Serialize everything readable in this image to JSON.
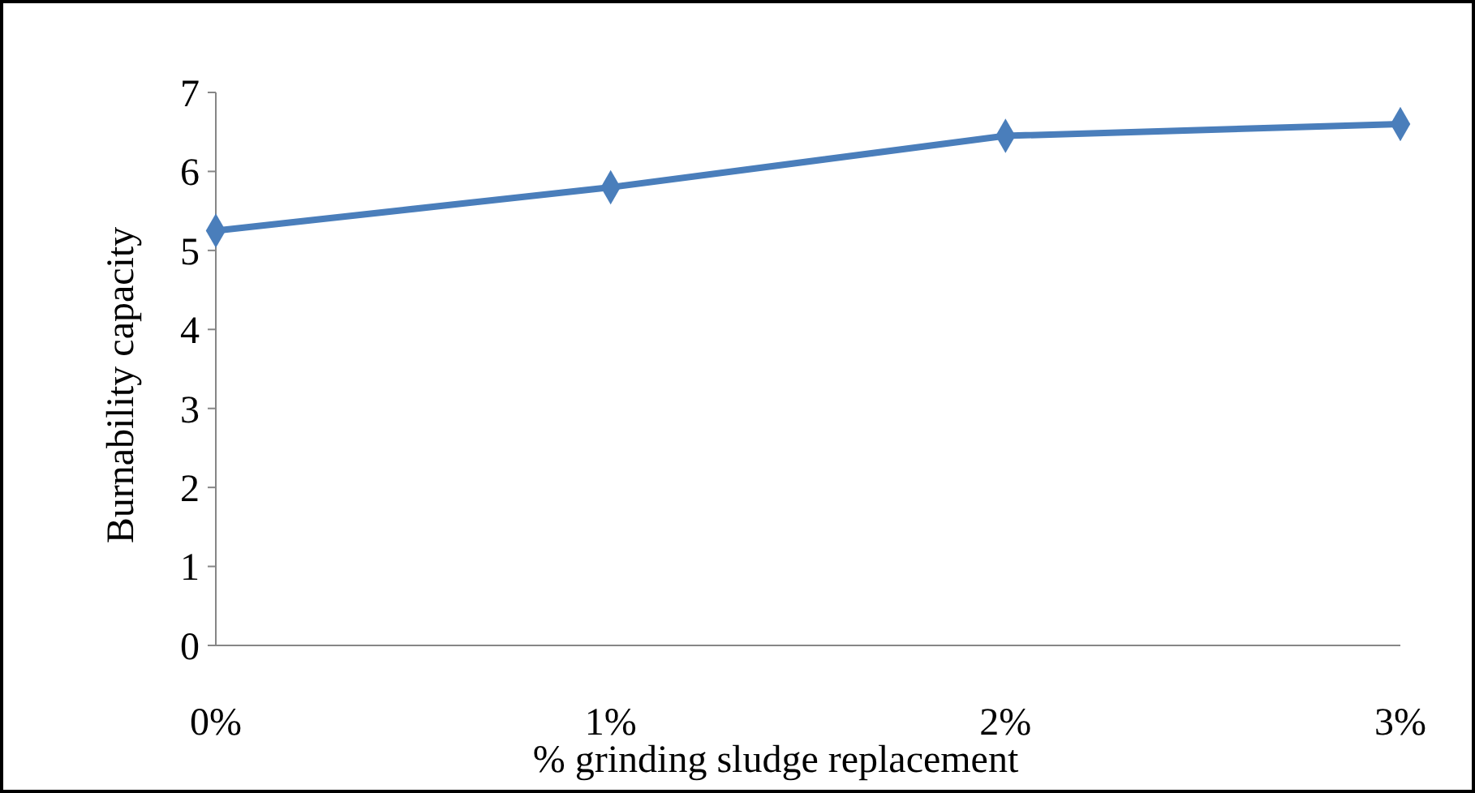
{
  "chart_data": {
    "type": "line",
    "xlabel": "% grinding sludge replacement",
    "ylabel": "Burnability capacity",
    "categories": [
      "0%",
      "1%",
      "2%",
      "3%"
    ],
    "series": [
      {
        "color": "#4a7ebb",
        "values": [
          5.25,
          5.8,
          6.45,
          6.6
        ]
      }
    ],
    "ylim": [
      0,
      7
    ],
    "yticks": [
      0,
      1,
      2,
      3,
      4,
      5,
      6,
      7
    ],
    "grid": false,
    "marker": "diamond",
    "line_style": "solid"
  }
}
